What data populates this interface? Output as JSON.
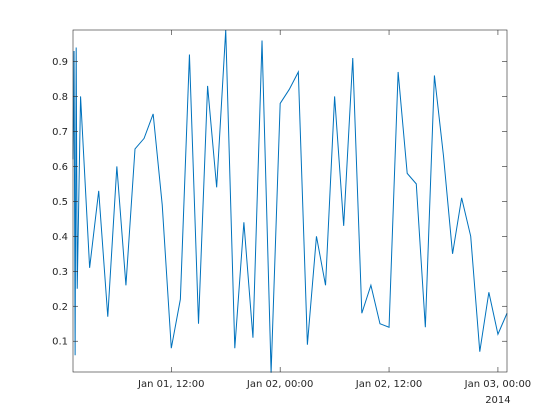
{
  "chart_data": {
    "type": "line",
    "color": "#0072BD",
    "x": [
      "2014-01-01T01:10",
      "2014-01-01T01:17",
      "2014-01-01T01:24",
      "2014-01-01T01:31",
      "2014-01-01T01:38",
      "2014-01-01T02:00",
      "2014-01-01T03:00",
      "2014-01-01T04:00",
      "2014-01-01T05:00",
      "2014-01-01T06:00",
      "2014-01-01T07:00",
      "2014-01-01T08:00",
      "2014-01-01T09:00",
      "2014-01-01T10:00",
      "2014-01-01T11:00",
      "2014-01-01T12:00",
      "2014-01-01T13:00",
      "2014-01-01T14:00",
      "2014-01-01T15:00",
      "2014-01-01T16:00",
      "2014-01-01T17:00",
      "2014-01-01T18:00",
      "2014-01-01T19:00",
      "2014-01-01T20:00",
      "2014-01-01T21:00",
      "2014-01-01T22:00",
      "2014-01-01T23:00",
      "2014-01-02T00:00",
      "2014-01-02T01:00",
      "2014-01-02T02:00",
      "2014-01-02T03:00",
      "2014-01-02T04:00",
      "2014-01-02T05:00",
      "2014-01-02T06:00",
      "2014-01-02T07:00",
      "2014-01-02T08:00",
      "2014-01-02T09:00",
      "2014-01-02T10:00",
      "2014-01-02T11:00",
      "2014-01-02T12:00",
      "2014-01-02T13:00",
      "2014-01-02T14:00",
      "2014-01-02T15:00",
      "2014-01-02T16:00",
      "2014-01-02T17:00",
      "2014-01-02T18:00",
      "2014-01-02T19:00",
      "2014-01-02T20:00",
      "2014-01-02T21:00",
      "2014-01-02T22:00",
      "2014-01-02T23:00",
      "2014-01-03T00:00",
      "2014-01-03T01:00"
    ],
    "values": [
      0.62,
      0.93,
      0.06,
      0.94,
      0.25,
      0.8,
      0.31,
      0.53,
      0.17,
      0.6,
      0.26,
      0.65,
      0.68,
      0.75,
      0.49,
      0.08,
      0.22,
      0.92,
      0.15,
      0.83,
      0.54,
      0.99,
      0.08,
      0.44,
      0.11,
      0.96,
      0.01,
      0.78,
      0.82,
      0.87,
      0.09,
      0.4,
      0.26,
      0.8,
      0.43,
      0.91,
      0.18,
      0.26,
      0.15,
      0.14,
      0.87,
      0.58,
      0.55,
      0.14,
      0.86,
      0.63,
      0.35,
      0.51,
      0.4,
      0.07,
      0.24,
      0.12,
      0.18
    ],
    "xlim": [
      "2014-01-01T01:10",
      "2014-01-03T01:00"
    ],
    "xticks": [
      {
        "value": "2014-01-01T12:00",
        "label": "Jan 01, 12:00"
      },
      {
        "value": "2014-01-02T00:00",
        "label": "Jan 02, 00:00"
      },
      {
        "value": "2014-01-02T12:00",
        "label": "Jan 02, 12:00"
      },
      {
        "value": "2014-01-03T00:00",
        "label": "Jan 03, 00:00"
      }
    ],
    "x_secondary_label": "2014",
    "ylim": [
      0.012,
      0.99
    ],
    "yticks": [
      0.1,
      0.2,
      0.3,
      0.4,
      0.5,
      0.6,
      0.7,
      0.8,
      0.9
    ]
  }
}
